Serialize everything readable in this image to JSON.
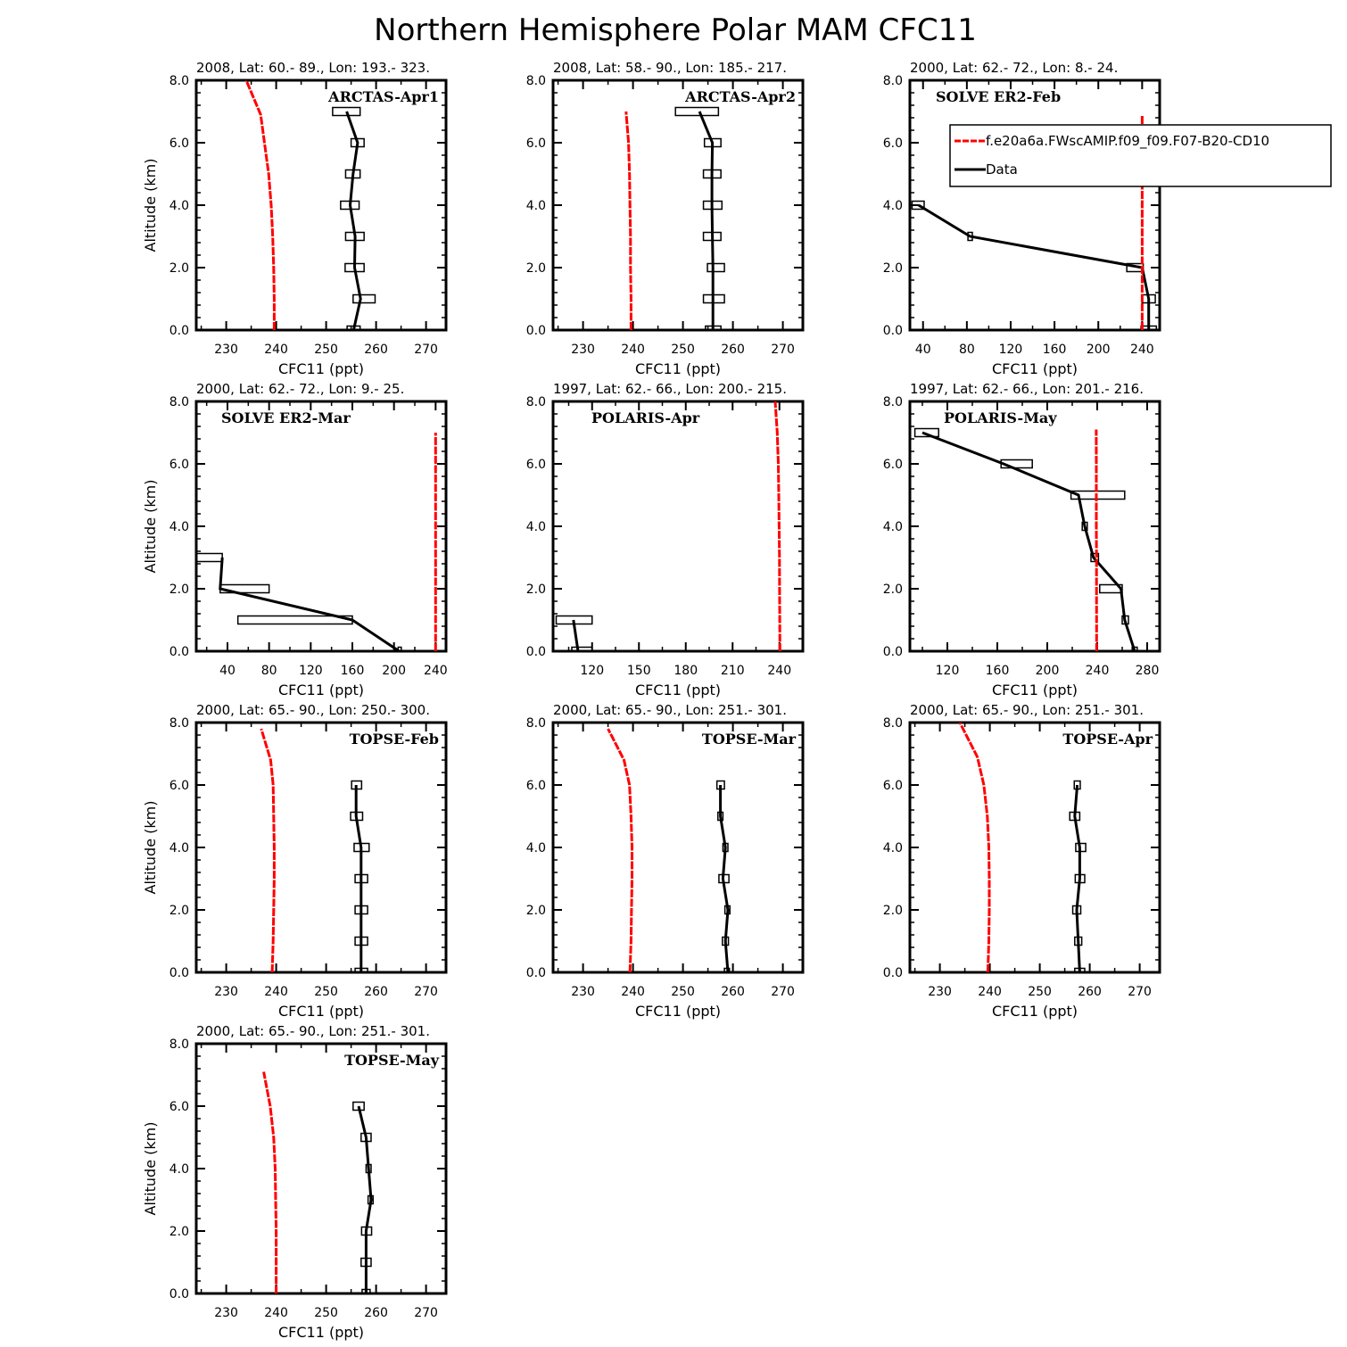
{
  "title": "Northern Hemisphere Polar MAM CFC11",
  "legend": {
    "model_label": "f.e20a6a.FWscAMIP.f09_f09.F07-B20-CD10",
    "data_label": "Data",
    "model_color": "#ff0000",
    "data_color": "#000000"
  },
  "chart_data": [
    {
      "type": "line",
      "title": "ARCTAS-Apr1",
      "subtitle": "2008, Lat:  60.- 89., Lon: 193.- 323.",
      "xlabel": "CFC11 (ppt)",
      "ylabel": "Altitude (km)",
      "xlim": [
        224,
        274
      ],
      "ylim": [
        0,
        8
      ],
      "xticks": [
        230,
        240,
        250,
        260,
        270
      ],
      "xticklabels": [
        "230",
        "240",
        "250",
        "260",
        "270"
      ],
      "yticks": [
        0,
        2,
        4,
        6,
        8
      ],
      "yticklabels": [
        "0.0",
        "2.0",
        "4.0",
        "6.0",
        "8.0"
      ],
      "model": {
        "x": [
          239.6,
          239.6,
          239.5,
          239.3,
          239.0,
          238.5,
          236.9,
          234.0
        ],
        "y": [
          0,
          1,
          2,
          3,
          4,
          5,
          6.9,
          8
        ]
      },
      "data": {
        "x": [
          255.5,
          256.9,
          255.7,
          255.8,
          254.8,
          255.4,
          256.3,
          254.1
        ],
        "y": [
          0,
          1,
          2,
          3,
          4,
          5,
          6,
          7
        ]
      },
      "boxes": [
        [
          254.2,
          256.8,
          0
        ],
        [
          255.4,
          259.8,
          1
        ],
        [
          253.8,
          257.6,
          2
        ],
        [
          253.9,
          257.6,
          3
        ],
        [
          252.9,
          256.6,
          4
        ],
        [
          253.9,
          256.8,
          5
        ],
        [
          255.0,
          257.6,
          6
        ],
        [
          251.3,
          256.8,
          7
        ]
      ],
      "show_legend": false
    },
    {
      "type": "line",
      "title": "ARCTAS-Apr2",
      "subtitle": "2008, Lat:  58.- 90., Lon: 185.- 217.",
      "xlabel": "CFC11 (ppt)",
      "ylabel": "",
      "xlim": [
        224,
        274
      ],
      "ylim": [
        0,
        8
      ],
      "xticks": [
        230,
        240,
        250,
        260,
        270
      ],
      "xticklabels": [
        "230",
        "240",
        "250",
        "260",
        "270"
      ],
      "yticks": [
        0,
        2,
        4,
        6,
        8
      ],
      "yticklabels": [
        "0.0",
        "2.0",
        "4.0",
        "6.0",
        "8.0"
      ],
      "model": {
        "x": [
          239.6,
          239.6,
          239.5,
          239.5,
          239.4,
          239.3,
          239.1,
          238.6
        ],
        "y": [
          0,
          1,
          2,
          3,
          4,
          5,
          6,
          7
        ]
      },
      "data": {
        "x": [
          256.0,
          256.0,
          256.0,
          255.9,
          255.8,
          255.8,
          255.9,
          253.3
        ],
        "y": [
          0,
          1,
          2,
          3,
          4,
          5,
          6,
          7
        ]
      },
      "boxes": [
        [
          254.5,
          257.6,
          0
        ],
        [
          254.1,
          258.3,
          1
        ],
        [
          254.9,
          258.3,
          2
        ],
        [
          254.1,
          257.6,
          3
        ],
        [
          254.1,
          257.8,
          4
        ],
        [
          254.1,
          257.6,
          5
        ],
        [
          254.3,
          257.6,
          6
        ],
        [
          248.5,
          257.1,
          7
        ]
      ],
      "show_legend": false
    },
    {
      "type": "line",
      "title": "SOLVE ER2-Feb",
      "subtitle": "2000, Lat: 62.- 72., Lon: 8.- 24.",
      "xlabel": "CFC11 (ppt)",
      "ylabel": "",
      "xlim": [
        28,
        256
      ],
      "ylim": [
        0,
        8
      ],
      "xticks": [
        40,
        80,
        120,
        160,
        200,
        240
      ],
      "xticklabels": [
        "40",
        "80",
        "120",
        "160",
        "200",
        "240"
      ],
      "yticks": [
        0,
        2,
        4,
        6,
        8
      ],
      "yticklabels": [
        "0.0",
        "2.0",
        "4.0",
        "6.0",
        "8.0"
      ],
      "model": {
        "x": [
          240,
          240,
          240,
          240,
          240,
          240,
          240,
          240
        ],
        "y": [
          0,
          1,
          2,
          3,
          4,
          5,
          6,
          6.9
        ]
      },
      "data": {
        "x": [
          246,
          246,
          240,
          83,
          36
        ],
        "y": [
          0,
          1,
          2,
          3,
          4
        ]
      },
      "boxes": [
        [
          239,
          253,
          0
        ],
        [
          240,
          252,
          1
        ],
        [
          226,
          241,
          2
        ],
        [
          81,
          85,
          3
        ],
        [
          30,
          41,
          4
        ]
      ],
      "show_legend": true
    },
    {
      "type": "line",
      "title": "SOLVE ER2-Mar",
      "subtitle": "2000, Lat: 62.- 72., Lon: 9.- 25.",
      "xlabel": "CFC11 (ppt)",
      "ylabel": "Altitude (km)",
      "xlim": [
        10,
        250
      ],
      "ylim": [
        0,
        8
      ],
      "xticks": [
        40,
        80,
        120,
        160,
        200,
        240
      ],
      "xticklabels": [
        "40",
        "80",
        "120",
        "160",
        "200",
        "240"
      ],
      "yticks": [
        0,
        2,
        4,
        6,
        8
      ],
      "yticklabels": [
        "0.0",
        "2.0",
        "4.0",
        "6.0",
        "8.0"
      ],
      "model": {
        "x": [
          240,
          240,
          240,
          240,
          240,
          240,
          240,
          240
        ],
        "y": [
          0,
          1,
          2,
          3,
          4,
          5,
          6,
          7
        ]
      },
      "data": {
        "x": [
          205,
          160,
          33,
          35
        ],
        "y": [
          0,
          1,
          2,
          3
        ]
      },
      "boxes": [
        [
          204,
          207,
          0
        ],
        [
          50,
          160,
          1
        ],
        [
          33,
          80,
          2
        ],
        [
          10,
          35,
          3
        ]
      ],
      "show_legend": false
    },
    {
      "type": "line",
      "title": "POLARIS-Apr",
      "subtitle": "1997, Lat: 62.- 66., Lon: 200.- 215.",
      "xlabel": "CFC11 (ppt)",
      "ylabel": "",
      "xlim": [
        95,
        255
      ],
      "ylim": [
        0,
        8
      ],
      "xticks": [
        120,
        150,
        180,
        210,
        240
      ],
      "xticklabels": [
        "120",
        "150",
        "180",
        "210",
        "240"
      ],
      "yticks": [
        0,
        2,
        4,
        6,
        8
      ],
      "yticklabels": [
        "0.0",
        "2.0",
        "4.0",
        "6.0",
        "8.0"
      ],
      "model": {
        "x": [
          240.3,
          240.2,
          240.1,
          240.0,
          239.8,
          239.6,
          239.3,
          238.6,
          237.3
        ],
        "y": [
          0,
          1,
          2,
          3,
          4,
          5,
          6,
          7,
          8
        ]
      },
      "data": {
        "x": [
          111,
          108
        ],
        "y": [
          0,
          1
        ]
      },
      "boxes": [
        [
          107,
          120,
          0
        ],
        [
          97,
          120,
          1
        ]
      ],
      "show_legend": false
    },
    {
      "type": "line",
      "title": "POLARIS-May",
      "subtitle": "1997, Lat: 62.- 66., Lon: 201.- 216.",
      "xlabel": "CFC11 (ppt)",
      "ylabel": "",
      "xlim": [
        90,
        290
      ],
      "ylim": [
        0,
        8
      ],
      "xticks": [
        120,
        160,
        200,
        240,
        280
      ],
      "xticklabels": [
        "120",
        "160",
        "200",
        "240",
        "280"
      ],
      "yticks": [
        0,
        2,
        4,
        6,
        8
      ],
      "yticklabels": [
        "0.0",
        "2.0",
        "4.0",
        "6.0",
        "8.0"
      ],
      "model": {
        "x": [
          239.5,
          239.5,
          239.4,
          239.4,
          239.3,
          239.3,
          239.3,
          239.2
        ],
        "y": [
          0,
          1,
          2,
          3,
          4,
          5,
          6,
          7.1
        ]
      },
      "data": {
        "x": [
          270,
          262,
          259,
          237,
          230,
          225,
          165,
          100
        ],
        "y": [
          0,
          1,
          2,
          3,
          4,
          5,
          6,
          7
        ]
      },
      "boxes": [
        [
          268,
          272,
          0
        ],
        [
          260,
          265,
          1
        ],
        [
          242,
          260,
          2
        ],
        [
          235,
          241,
          3
        ],
        [
          228,
          232,
          4
        ],
        [
          219,
          262,
          5
        ],
        [
          163,
          188,
          6
        ],
        [
          94,
          113,
          7
        ]
      ],
      "show_legend": false
    },
    {
      "type": "line",
      "title": "TOPSE-Feb",
      "subtitle": "2000, Lat: 65.- 90., Lon: 250.- 300.",
      "xlabel": "CFC11 (ppt)",
      "ylabel": "Altitude (km)",
      "xlim": [
        224,
        274
      ],
      "ylim": [
        0,
        8
      ],
      "xticks": [
        230,
        240,
        250,
        260,
        270
      ],
      "xticklabels": [
        "230",
        "240",
        "250",
        "260",
        "270"
      ],
      "yticks": [
        0,
        2,
        4,
        6,
        8
      ],
      "yticklabels": [
        "0.0",
        "2.0",
        "4.0",
        "6.0",
        "8.0"
      ],
      "model": {
        "x": [
          239.2,
          239.4,
          239.5,
          239.6,
          239.6,
          239.5,
          239.4,
          238.9,
          237.0
        ],
        "y": [
          0,
          1,
          2,
          3,
          4,
          5,
          6,
          6.8,
          7.8
        ]
      },
      "data": {
        "x": [
          257.0,
          257.0,
          257.0,
          257.0,
          257.0,
          256.0,
          256.0
        ],
        "y": [
          0,
          1,
          2,
          3,
          4,
          5,
          6
        ]
      },
      "boxes": [
        [
          255.8,
          258.3,
          0
        ],
        [
          255.8,
          258.3,
          1
        ],
        [
          255.8,
          258.3,
          2
        ],
        [
          255.8,
          258.3,
          3
        ],
        [
          255.6,
          258.6,
          4
        ],
        [
          254.9,
          257.3,
          5
        ],
        [
          255.1,
          257.1,
          6
        ]
      ],
      "show_legend": false
    },
    {
      "type": "line",
      "title": "TOPSE-Mar",
      "subtitle": "2000, Lat: 65.- 90., Lon: 251.- 301.",
      "xlabel": "CFC11 (ppt)",
      "ylabel": "",
      "xlim": [
        224,
        274
      ],
      "ylim": [
        0,
        8
      ],
      "xticks": [
        230,
        240,
        250,
        260,
        270
      ],
      "xticklabels": [
        "230",
        "240",
        "250",
        "260",
        "270"
      ],
      "yticks": [
        0,
        2,
        4,
        6,
        8
      ],
      "yticklabels": [
        "0.0",
        "2.0",
        "4.0",
        "6.0",
        "8.0"
      ],
      "model": {
        "x": [
          239.4,
          239.6,
          239.7,
          239.8,
          239.8,
          239.6,
          239.3,
          238.2,
          235.0
        ],
        "y": [
          0,
          1,
          2,
          3,
          4,
          5,
          6,
          6.8,
          7.8
        ]
      },
      "data": {
        "x": [
          259.0,
          258.5,
          259.0,
          258.0,
          258.5,
          257.5,
          257.5
        ],
        "y": [
          0,
          1,
          2,
          3,
          4,
          5,
          6
        ]
      },
      "boxes": [
        [
          258.3,
          259.3,
          0
        ],
        [
          257.9,
          259.1,
          1
        ],
        [
          258.4,
          259.4,
          2
        ],
        [
          257.2,
          259.2,
          3
        ],
        [
          258.0,
          259.0,
          4
        ],
        [
          257.0,
          258.0,
          5
        ],
        [
          256.8,
          258.3,
          6
        ]
      ],
      "show_legend": false
    },
    {
      "type": "line",
      "title": "TOPSE-Apr",
      "subtitle": "2000, Lat: 65.- 90., Lon: 251.- 301.",
      "xlabel": "CFC11 (ppt)",
      "ylabel": "",
      "xlim": [
        224,
        274
      ],
      "ylim": [
        0,
        8
      ],
      "xticks": [
        230,
        240,
        250,
        260,
        270
      ],
      "xticklabels": [
        "230",
        "240",
        "250",
        "260",
        "270"
      ],
      "yticks": [
        0,
        2,
        4,
        6,
        8
      ],
      "yticklabels": [
        "0.0",
        "2.0",
        "4.0",
        "6.0",
        "8.0"
      ],
      "model": {
        "x": [
          239.6,
          239.8,
          239.9,
          239.9,
          239.8,
          239.5,
          238.8,
          237.5,
          234.0
        ],
        "y": [
          0,
          1,
          2,
          3,
          4,
          5,
          6,
          6.9,
          8
        ]
      },
      "data": {
        "x": [
          258.0,
          257.7,
          257.4,
          258.0,
          258.0,
          257.0,
          257.5
        ],
        "y": [
          0,
          1,
          2,
          3,
          4,
          5,
          6
        ]
      },
      "boxes": [
        [
          257.0,
          259.0,
          0
        ],
        [
          257.0,
          258.4,
          1
        ],
        [
          256.6,
          258.2,
          2
        ],
        [
          257.1,
          259.0,
          3
        ],
        [
          257.2,
          259.2,
          4
        ],
        [
          256.0,
          258.0,
          5
        ],
        [
          256.9,
          258.1,
          6
        ]
      ],
      "show_legend": false
    },
    {
      "type": "line",
      "title": "TOPSE-May",
      "subtitle": "2000, Lat: 65.- 90., Lon: 251.- 301.",
      "xlabel": "CFC11 (ppt)",
      "ylabel": "Altitude (km)",
      "xlim": [
        224,
        274
      ],
      "ylim": [
        0,
        8
      ],
      "xticks": [
        230,
        240,
        250,
        260,
        270
      ],
      "xticklabels": [
        "230",
        "240",
        "250",
        "260",
        "270"
      ],
      "yticks": [
        0,
        2,
        4,
        6,
        8
      ],
      "yticklabels": [
        "0.0",
        "2.0",
        "4.0",
        "6.0",
        "8.0"
      ],
      "model": {
        "x": [
          240.0,
          240.0,
          240.0,
          239.9,
          239.8,
          239.5,
          238.8,
          237.5
        ],
        "y": [
          0,
          1,
          2,
          3,
          4,
          5,
          6,
          7.1
        ]
      },
      "data": {
        "x": [
          258.0,
          258.0,
          258.0,
          259.0,
          258.5,
          258.0,
          256.5
        ],
        "y": [
          0,
          1,
          2,
          3,
          4,
          5,
          6
        ]
      },
      "boxes": [
        [
          257.2,
          258.8,
          0
        ],
        [
          257.0,
          259.0,
          1
        ],
        [
          257.1,
          259.1,
          2
        ],
        [
          258.4,
          259.4,
          3
        ],
        [
          258.0,
          259.0,
          4
        ],
        [
          257.0,
          259.0,
          5
        ],
        [
          255.4,
          257.6,
          6
        ]
      ],
      "show_legend": false
    }
  ]
}
